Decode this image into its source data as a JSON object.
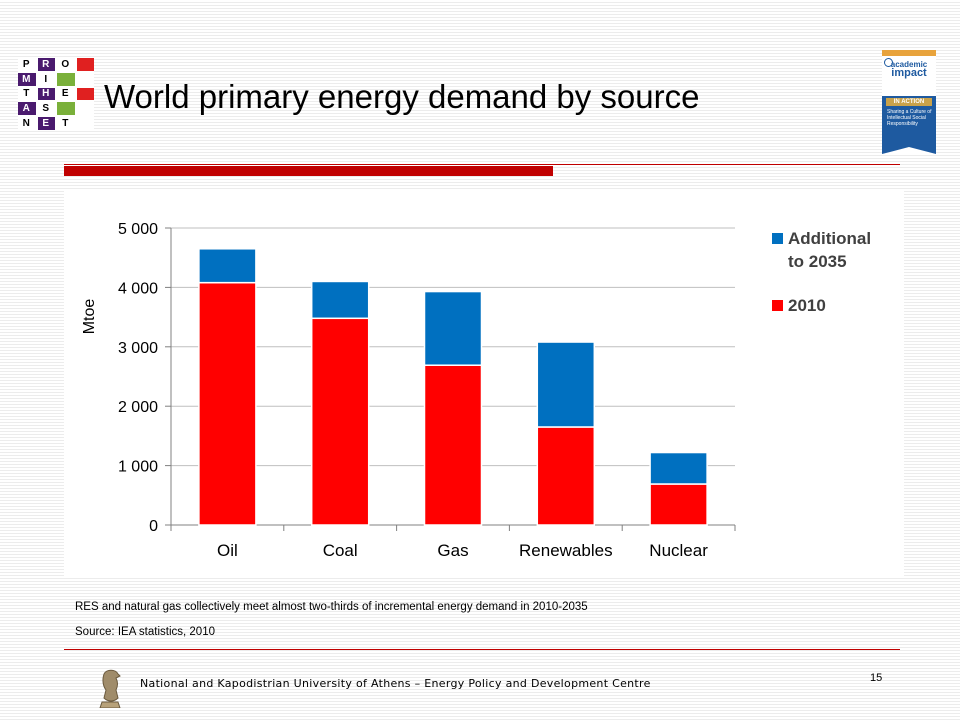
{
  "logo": {
    "rows": [
      [
        {
          "t": "P",
          "c": "w"
        },
        {
          "t": "R",
          "c": "p"
        },
        {
          "t": "O",
          "c": "w"
        },
        {
          "t": "",
          "c": "r"
        }
      ],
      [
        {
          "t": "M",
          "c": "p"
        },
        {
          "t": "I",
          "c": "w"
        },
        {
          "t": "",
          "c": "g"
        },
        {
          "t": "",
          "c": "w"
        }
      ],
      [
        {
          "t": "T",
          "c": "w"
        },
        {
          "t": "H",
          "c": "p"
        },
        {
          "t": "E",
          "c": "w"
        },
        {
          "t": "",
          "c": "r"
        }
      ],
      [
        {
          "t": "A",
          "c": "p"
        },
        {
          "t": "S",
          "c": "w"
        },
        {
          "t": "",
          "c": "g"
        },
        {
          "t": "",
          "c": "w"
        }
      ],
      [
        {
          "t": "N",
          "c": "w"
        },
        {
          "t": "E",
          "c": "p"
        },
        {
          "t": "T",
          "c": "w"
        },
        {
          "t": "",
          "c": "w"
        }
      ]
    ]
  },
  "slide": {
    "title": "World primary energy demand by source",
    "note": "RES and natural gas collectively meet almost two-thirds of incremental energy demand in 2010-2035",
    "source": "Source: IEA statistics, 2010",
    "footer": "National and Kapodistrian University of Athens – Energy Policy and Development Centre",
    "page_number": "15"
  },
  "badge": {
    "line1": "academic",
    "line2": "impact",
    "line3": "IN ACTION",
    "tagline": "Sharing a Culture of Intellectual Social Responsibility"
  },
  "colors": {
    "accent_red": "#c00000",
    "rule_red": "#c00000",
    "series_2010": "#ff0000",
    "series_additional": "#0070c0",
    "badge_blue": "#1e5aa0",
    "badge_gold": "#e8a33c",
    "logo_purple": "#4a1a6e",
    "logo_red": "#e02020",
    "logo_green": "#7ab03a"
  },
  "chart_data": {
    "type": "bar",
    "stacked": true,
    "categories": [
      "Oil",
      "Coal",
      "Gas",
      "Renewables",
      "Nuclear"
    ],
    "series": [
      {
        "name": "2010",
        "color": "#ff0000",
        "values": [
          4080,
          3480,
          2690,
          1650,
          690
        ]
      },
      {
        "name": "Additional to 2035",
        "color": "#0070c0",
        "values": [
          570,
          620,
          1240,
          1430,
          530
        ]
      }
    ],
    "ylabel": "Mtoe",
    "xlabel": "",
    "ylim": [
      0,
      5000
    ],
    "yticks": [
      0,
      1000,
      2000,
      3000,
      4000,
      5000
    ],
    "ytick_labels": [
      "0",
      "1 000",
      "2 000",
      "3 000",
      "4 000",
      "5 000"
    ],
    "legend": [
      {
        "label_lines": [
          "Additional",
          "to 2035"
        ],
        "color": "#0070c0"
      },
      {
        "label_lines": [
          "2010"
        ],
        "color": "#ff0000"
      }
    ],
    "legend_position": "right",
    "grid": true
  }
}
